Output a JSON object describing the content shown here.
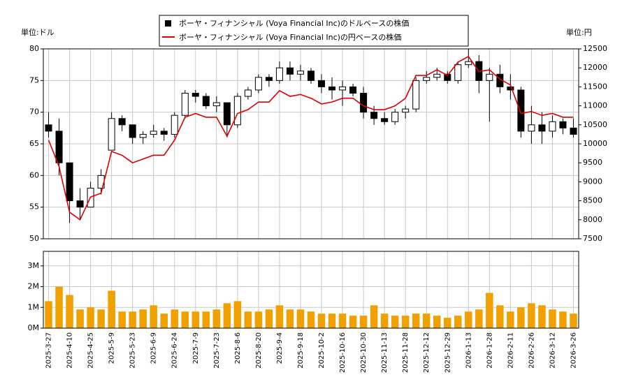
{
  "chart_data": {
    "type": "candlestick",
    "left_unit": "単位:ドル",
    "right_unit": "単位:円",
    "categories": [
      "2025-3-27",
      null,
      "2025-4-10",
      null,
      "2025-4-25",
      null,
      "2025-5-9",
      null,
      "2025-5-23",
      null,
      "2025-6-9",
      null,
      "2025-6-24",
      null,
      "2025-7-9",
      null,
      "2025-7-23",
      null,
      "2025-8-6",
      null,
      "2025-8-20",
      null,
      "2025-9-4",
      null,
      "2025-9-18",
      null,
      "2025-10-2",
      null,
      "2025-10-16",
      null,
      "2025-10-30",
      null,
      "2025-11-13",
      null,
      "2025-11-28",
      null,
      "2025-12-12",
      null,
      "2025-12-29",
      null,
      "2026-1-13",
      null,
      "2026-1-28",
      null,
      "2026-2-11",
      null,
      "2026-2-26",
      null,
      "2026-3-12",
      null,
      "2026-3-26"
    ],
    "ohlc": {
      "name": "ボーヤ・フィナンシャル (Voya Financial Inc)のドルベースの株価",
      "color": "#000000",
      "open": [
        68,
        67,
        62,
        56,
        55,
        58,
        64,
        69,
        68,
        66,
        66.5,
        67,
        66.5,
        69.5,
        73,
        72.5,
        71,
        71.5,
        68,
        72.5,
        73.5,
        75.5,
        75,
        77,
        76,
        76.5,
        75,
        74,
        73.5,
        74,
        73,
        70,
        69,
        68.5,
        70,
        70.5,
        75,
        75.5,
        76,
        75,
        77.5,
        78,
        75,
        76,
        74,
        73.5,
        67,
        68,
        67,
        68.5,
        67.5
      ],
      "high": [
        70,
        69,
        62,
        58,
        59,
        61,
        70,
        69.5,
        68,
        67,
        68,
        67.5,
        70,
        73.5,
        73.5,
        73,
        72.5,
        71.5,
        73,
        74,
        76,
        76,
        78,
        78,
        77.5,
        77,
        76,
        75.5,
        75,
        74.5,
        74,
        71,
        70,
        70.5,
        71,
        75.5,
        76.5,
        77,
        76.5,
        78,
        80,
        79,
        77,
        77.5,
        76,
        74,
        71,
        70,
        69.5,
        69,
        69
      ],
      "low": [
        66,
        60,
        52.5,
        53,
        55,
        57,
        64,
        67,
        65,
        65,
        66,
        65.5,
        66,
        69,
        71.5,
        70.5,
        70,
        66,
        67.5,
        72,
        73,
        74,
        74.5,
        75,
        75,
        74.5,
        73,
        72,
        71,
        72.5,
        69,
        68,
        68,
        68,
        69,
        70,
        74.5,
        75,
        74.5,
        74.5,
        77,
        73,
        68.5,
        73,
        72,
        66,
        65,
        65,
        66,
        66.5,
        66
      ],
      "close": [
        67,
        62,
        56,
        55,
        58,
        60,
        69,
        68,
        66,
        66.5,
        67,
        66.5,
        69.5,
        73,
        72.5,
        71,
        71.5,
        68,
        72.5,
        73.5,
        75.5,
        75,
        77,
        76,
        76.5,
        75,
        74,
        73.5,
        74,
        73,
        70,
        69,
        68.5,
        70,
        70.5,
        75,
        75.5,
        76,
        75,
        77.5,
        78,
        75,
        76,
        74,
        73.5,
        67,
        68,
        67,
        68.5,
        67.5,
        66.5
      ]
    },
    "yen": {
      "name": "ボーヤ・フィナンシャル (Voya Financial Inc)の円ベースの株価",
      "color": "#dd0000",
      "axis": "y2",
      "values": [
        10100,
        9400,
        8200,
        8000,
        8600,
        8700,
        9800,
        9700,
        9500,
        9600,
        9700,
        9700,
        10100,
        10700,
        10800,
        10700,
        10700,
        10200,
        10800,
        10900,
        11100,
        11100,
        11400,
        11250,
        11300,
        11200,
        11050,
        11100,
        11200,
        11200,
        11000,
        10900,
        10900,
        11000,
        11200,
        11800,
        11800,
        11950,
        11800,
        12150,
        12300,
        11900,
        11950,
        11700,
        11550,
        10800,
        10850,
        10750,
        10800,
        10700,
        10700
      ]
    },
    "volume": {
      "color": "#f0a000",
      "values": [
        1300000,
        2000000,
        1600000,
        900000,
        1000000,
        900000,
        1800000,
        800000,
        800000,
        900000,
        1100000,
        700000,
        900000,
        800000,
        800000,
        800000,
        900000,
        1200000,
        1300000,
        800000,
        800000,
        900000,
        1100000,
        900000,
        900000,
        800000,
        700000,
        700000,
        700000,
        600000,
        600000,
        1100000,
        700000,
        600000,
        600000,
        700000,
        700000,
        600000,
        500000,
        600000,
        800000,
        900000,
        1700000,
        1100000,
        800000,
        1000000,
        1200000,
        1100000,
        900000,
        800000,
        700000
      ],
      "ylim": [
        0,
        3700000
      ],
      "yticks": [
        {
          "value": 0,
          "label": "0M"
        },
        {
          "value": 1000000,
          "label": "1M"
        },
        {
          "value": 2000000,
          "label": "2M"
        },
        {
          "value": 3000000,
          "label": "3M"
        }
      ]
    },
    "ylim": [
      50,
      80
    ],
    "yticks": [
      50,
      55,
      60,
      65,
      70,
      75,
      80
    ],
    "y2lim": [
      7500,
      12500
    ],
    "y2ticks": [
      7500,
      8000,
      8500,
      9000,
      9500,
      10000,
      10500,
      11000,
      11500,
      12000,
      12500
    ],
    "grid": true
  }
}
